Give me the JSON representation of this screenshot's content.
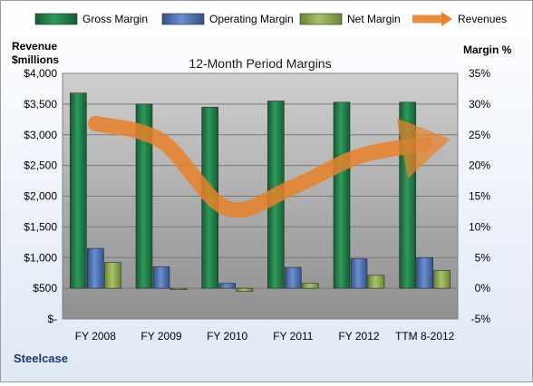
{
  "chart_data": {
    "type": "bar",
    "title": "12-Month Period Margins",
    "company_label": "Steelcase",
    "left_axis": {
      "label_line1": "Revenue",
      "label_line2": "$millions",
      "range": [
        0,
        4000
      ],
      "ticks": [
        "$-",
        "$500",
        "$1,000",
        "$1,500",
        "$2,000",
        "$2,500",
        "$3,000",
        "$3,500",
        "$4,000"
      ]
    },
    "right_axis": {
      "label": "Margin %",
      "range": [
        -5,
        35
      ],
      "ticks": [
        "-5%",
        "0%",
        "5%",
        "10%",
        "15%",
        "20%",
        "25%",
        "30%",
        "35%"
      ]
    },
    "categories": [
      "FY 2008",
      "FY 2009",
      "FY 2010",
      "FY 2011",
      "FY 2012",
      "TTM 8-2012"
    ],
    "legend_position": "top",
    "series": [
      {
        "name": "Gross Margin",
        "axis": "right",
        "type": "bar",
        "color": "#1f7a45",
        "values": [
          31.8,
          30.0,
          29.5,
          30.5,
          30.3,
          30.3
        ]
      },
      {
        "name": "Operating Margin",
        "axis": "right",
        "type": "bar",
        "color": "#4a6fb5",
        "values": [
          6.5,
          3.5,
          0.8,
          3.4,
          4.8,
          5.0
        ]
      },
      {
        "name": "Net Margin",
        "axis": "right",
        "type": "bar",
        "color": "#8dac48",
        "values": [
          4.2,
          -0.1,
          -0.5,
          0.8,
          2.1,
          2.9
        ]
      },
      {
        "name": "Revenues",
        "axis": "left",
        "type": "line",
        "color": "#e8822a",
        "values": [
          3183,
          2900,
          1800,
          2150,
          2650,
          2850
        ]
      }
    ]
  }
}
